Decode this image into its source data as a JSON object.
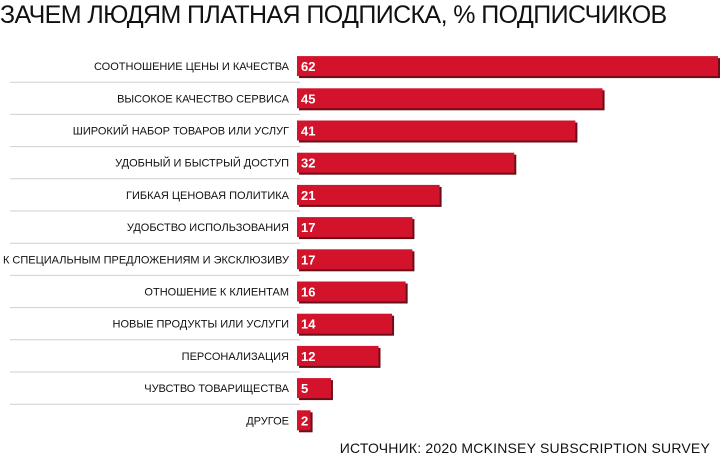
{
  "chart_data": {
    "type": "bar",
    "orientation": "horizontal",
    "title": "ЗАЧЕМ ЛЮДЯМ ПЛАТНАЯ ПОДПИСКА, % ПОДПИСЧИКОВ",
    "source": "ИСТОЧНИК: 2020 MCKINSEY SUBSCRIPTION SURVEY",
    "categories": [
      "СООТНОШЕНИЕ ЦЕНЫ И КАЧЕСТВА",
      "ВЫСОКОЕ КАЧЕСТВО СЕРВИСА",
      "ШИРОКИЙ НАБОР ТОВАРОВ ИЛИ УСЛУГ",
      "УДОБНЫЙ И БЫСТРЫЙ ДОСТУП",
      "ГИБКАЯ ЦЕНОВАЯ ПОЛИТИКА",
      "УДОБСТВО ИСПОЛЬЗОВАНИЯ",
      "ДОСТУП К СПЕЦИАЛЬНЫМ ПРЕДЛОЖЕНИЯМ И ЭКСКЛЮЗИВУ",
      "ОТНОШЕНИЕ К КЛИЕНТАМ",
      "НОВЫЕ ПРОДУКТЫ ИЛИ УСЛУГИ",
      "ПЕРСОНАЛИЗАЦИЯ",
      "ЧУВСТВО ТОВАРИЩЕСТВА",
      "ДРУГОЕ"
    ],
    "values": [
      62,
      45,
      41,
      32,
      21,
      17,
      17,
      16,
      14,
      12,
      5,
      2
    ],
    "xlim": [
      0,
      62
    ],
    "grid": false,
    "legend": "none",
    "colors": {
      "bar": "#d3132b",
      "bar_shadow": "#6a0f19",
      "separator": "#cfcfcf"
    }
  }
}
